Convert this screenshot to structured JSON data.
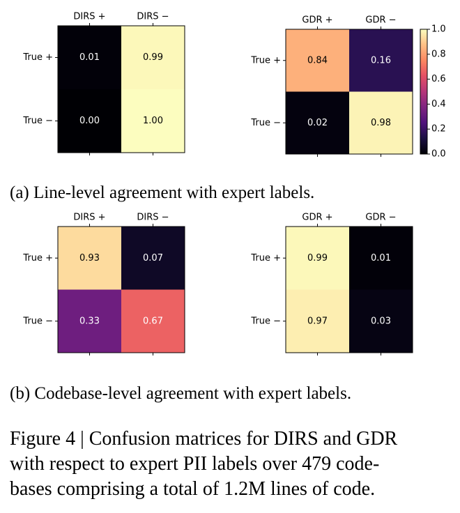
{
  "chart_data": [
    {
      "type": "heatmap",
      "colormap": "magma",
      "zlim": [
        0,
        1
      ],
      "x_categories": [
        "DIRS +",
        "DIRS −"
      ],
      "y_categories": [
        "True +",
        "True −"
      ],
      "values": [
        [
          0.01,
          0.99
        ],
        [
          0.0,
          1.0
        ]
      ],
      "value_labels": [
        [
          "0.01",
          "0.99"
        ],
        [
          "0.00",
          "1.00"
        ]
      ]
    },
    {
      "type": "heatmap",
      "colormap": "magma",
      "zlim": [
        0,
        1
      ],
      "x_categories": [
        "GDR +",
        "GDR −"
      ],
      "y_categories": [
        "True +",
        "True −"
      ],
      "values": [
        [
          0.84,
          0.16
        ],
        [
          0.02,
          0.98
        ]
      ],
      "value_labels": [
        [
          "0.84",
          "0.16"
        ],
        [
          "0.02",
          "0.98"
        ]
      ],
      "colorbar": true,
      "zticks": [
        {
          "value": 0,
          "label": "0.0"
        },
        {
          "value": 0.2,
          "label": "0.2"
        },
        {
          "value": 0.4,
          "label": "0.4"
        },
        {
          "value": 0.6,
          "label": "0.6"
        },
        {
          "value": 0.8,
          "label": "0.8"
        },
        {
          "value": 1,
          "label": "1.0"
        }
      ]
    },
    {
      "type": "heatmap",
      "colormap": "magma",
      "zlim": [
        0,
        1
      ],
      "x_categories": [
        "DIRS +",
        "DIRS −"
      ],
      "y_categories": [
        "True +",
        "True −"
      ],
      "values": [
        [
          0.93,
          0.07
        ],
        [
          0.33,
          0.67
        ]
      ],
      "value_labels": [
        [
          "0.93",
          "0.07"
        ],
        [
          "0.33",
          "0.67"
        ]
      ]
    },
    {
      "type": "heatmap",
      "colormap": "magma",
      "zlim": [
        0,
        1
      ],
      "x_categories": [
        "GDR +",
        "GDR −"
      ],
      "y_categories": [
        "True +",
        "True −"
      ],
      "values": [
        [
          0.99,
          0.01
        ],
        [
          0.97,
          0.03
        ]
      ],
      "value_labels": [
        [
          "0.99",
          "0.01"
        ],
        [
          "0.97",
          "0.03"
        ]
      ]
    }
  ],
  "captions": {
    "a": "(a) Line-level agreement with expert labels.",
    "b": "(b) Codebase-level agreement with expert labels.",
    "figure": [
      "Figure 4 | Confusion matrices for DIRS and GDR",
      "with respect to expert PII labels over 479 code-",
      "bases comprising a total of 1.2M lines of code."
    ]
  }
}
